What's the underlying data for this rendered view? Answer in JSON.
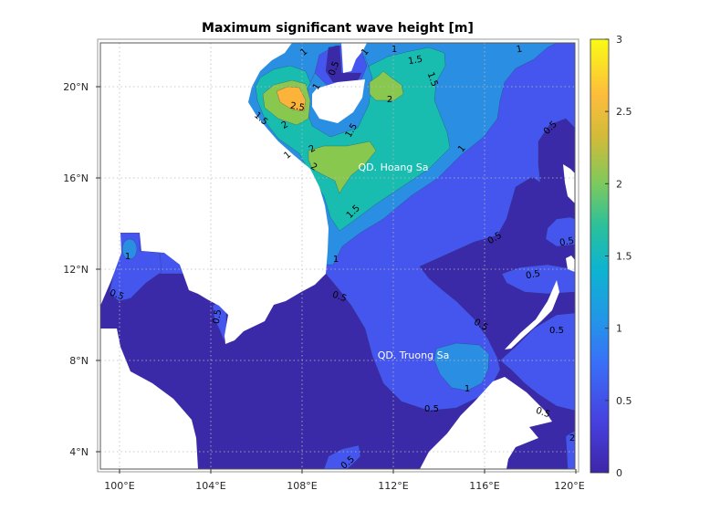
{
  "title": "Maximum significant wave height [m]",
  "colors": {
    "band_0_0.5": "#3b2aa8",
    "band_0.5_1": "#4456ee",
    "band_1_1.5": "#2a8ee2",
    "band_1.5_2": "#18bdb0",
    "band_2_2.5": "#89c84f",
    "band_2.5_3": "#fbb33a",
    "land": "#ffffff"
  },
  "x_ticks": [
    {
      "lon": 100,
      "label": "100°E"
    },
    {
      "lon": 104,
      "label": "104°E"
    },
    {
      "lon": 108,
      "label": "108°E"
    },
    {
      "lon": 112,
      "label": "112°E"
    },
    {
      "lon": 116,
      "label": "116°E"
    },
    {
      "lon": 120,
      "label": "120°E"
    }
  ],
  "y_ticks": [
    {
      "lat": 20,
      "label": "20°N"
    },
    {
      "lat": 16,
      "label": "16°N"
    },
    {
      "lat": 12,
      "label": "12°N"
    },
    {
      "lat": 8,
      "label": "8°N"
    },
    {
      "lat": 4,
      "label": "4°N"
    }
  ],
  "colorbar": {
    "range": [
      0,
      3
    ],
    "colormap": "parula",
    "ticks": [
      "0",
      "0.5",
      "1",
      "1.5",
      "2",
      "2.5",
      "3"
    ]
  },
  "places": [
    "QD. Hoang Sa",
    "QD. Truong Sa"
  ],
  "contour_labels": [
    "1",
    "1",
    "1",
    "1.5",
    "1",
    "0.5",
    "1",
    "1.5",
    "2",
    "2.5",
    "2",
    "1.5",
    "1.5",
    "2",
    "2",
    "1",
    "1",
    "0.5",
    "1.5",
    "0.5",
    "0.5",
    "1",
    "1",
    "0.5",
    "0.5",
    "0.5",
    "0.5",
    "0.5",
    "0.5",
    "1",
    "0.5",
    "0.5",
    "0.5",
    "2"
  ]
}
